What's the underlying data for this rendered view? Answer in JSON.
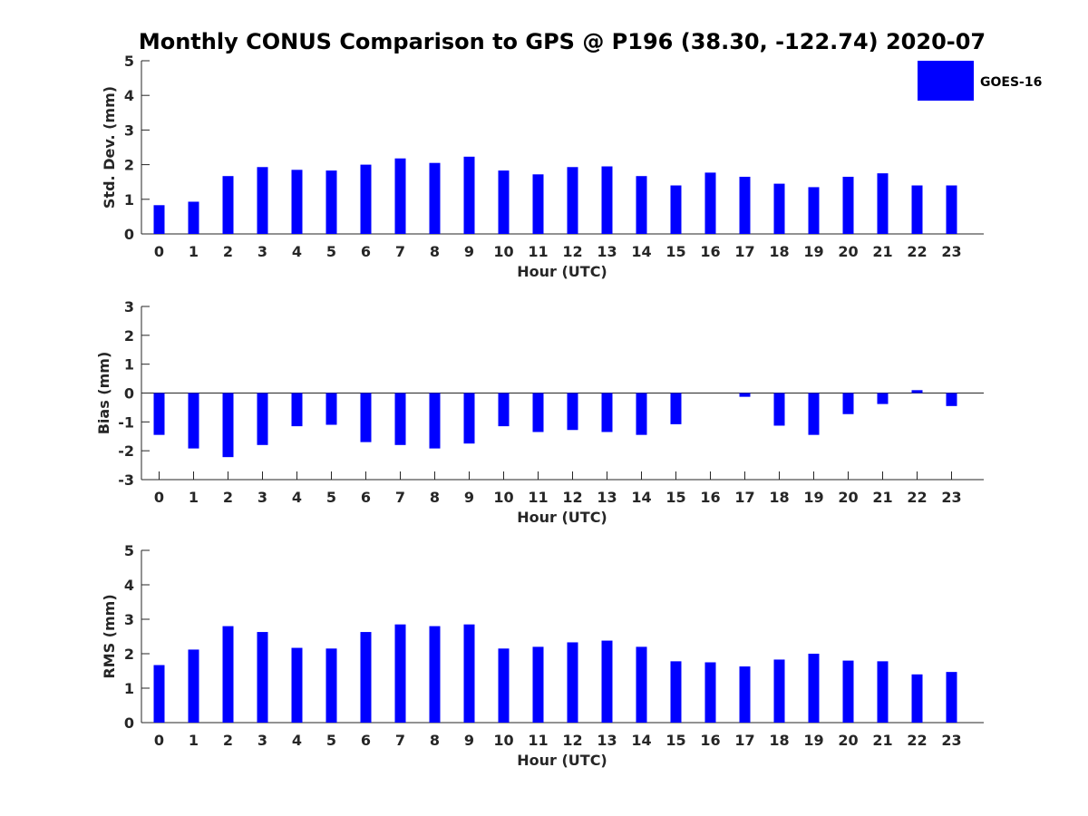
{
  "chart_data": {
    "type": "bar",
    "title": "Monthly CONUS Comparison to GPS @ P196 (38.30, -122.74) 2020-07",
    "legend": {
      "placement": "top-right",
      "entries": [
        "GOES-16"
      ]
    },
    "series_color": "#0000ff",
    "panels": [
      {
        "ylabel": "Std. Dev. (mm)",
        "xlabel": "Hour (UTC)",
        "ylim": [
          0,
          5
        ],
        "yticks": [
          0,
          1,
          2,
          3,
          4,
          5
        ],
        "categories": [
          "0",
          "1",
          "2",
          "3",
          "4",
          "5",
          "6",
          "7",
          "8",
          "9",
          "10",
          "11",
          "12",
          "13",
          "14",
          "15",
          "16",
          "17",
          "18",
          "19",
          "20",
          "21",
          "22",
          "23"
        ],
        "series": [
          {
            "name": "GOES-16",
            "values": [
              0.83,
              0.93,
              1.67,
              1.93,
              1.85,
              1.83,
              2.0,
              2.18,
              2.05,
              2.23,
              1.83,
              1.72,
              1.93,
              1.95,
              1.67,
              1.4,
              1.77,
              1.65,
              1.45,
              1.35,
              1.65,
              1.75,
              1.4,
              1.4
            ]
          }
        ]
      },
      {
        "ylabel": "Bias (mm)",
        "xlabel": "Hour (UTC)",
        "ylim": [
          -3,
          3
        ],
        "yticks": [
          -3,
          -2,
          -1,
          0,
          1,
          2,
          3
        ],
        "categories": [
          "0",
          "1",
          "2",
          "3",
          "4",
          "5",
          "6",
          "7",
          "8",
          "9",
          "10",
          "11",
          "12",
          "13",
          "14",
          "15",
          "16",
          "17",
          "18",
          "19",
          "20",
          "21",
          "22",
          "23"
        ],
        "series": [
          {
            "name": "GOES-16",
            "values": [
              -1.45,
              -1.92,
              -2.22,
              -1.8,
              -1.15,
              -1.1,
              -1.7,
              -1.8,
              -1.92,
              -1.75,
              -1.15,
              -1.35,
              -1.28,
              -1.35,
              -1.45,
              -1.08,
              0.0,
              -0.13,
              -1.13,
              -1.45,
              -0.73,
              -0.38,
              0.1,
              -0.45
            ]
          }
        ]
      },
      {
        "ylabel": "RMS (mm)",
        "xlabel": "Hour (UTC)",
        "ylim": [
          0,
          5
        ],
        "yticks": [
          0,
          1,
          2,
          3,
          4,
          5
        ],
        "categories": [
          "0",
          "1",
          "2",
          "3",
          "4",
          "5",
          "6",
          "7",
          "8",
          "9",
          "10",
          "11",
          "12",
          "13",
          "14",
          "15",
          "16",
          "17",
          "18",
          "19",
          "20",
          "21",
          "22",
          "23"
        ],
        "series": [
          {
            "name": "GOES-16",
            "values": [
              1.67,
              2.12,
              2.8,
              2.63,
              2.17,
              2.15,
              2.63,
              2.85,
              2.8,
              2.85,
              2.15,
              2.2,
              2.33,
              2.38,
              2.2,
              1.78,
              1.75,
              1.63,
              1.83,
              2.0,
              1.8,
              1.78,
              1.4,
              1.47
            ]
          }
        ]
      }
    ]
  }
}
